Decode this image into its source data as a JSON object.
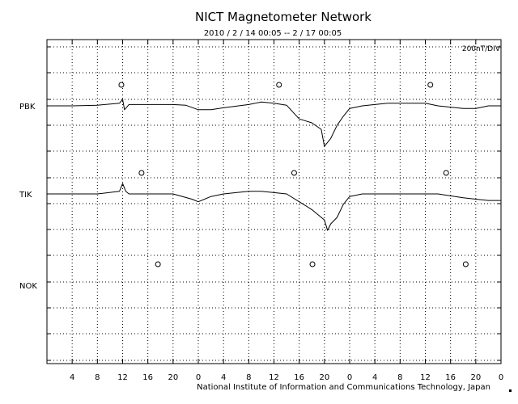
{
  "chart_data": {
    "type": "line",
    "title": "NICT Magnetometer Network",
    "subtitle": "2010 / 2 / 14   00:05 -- 2 / 17   00:05",
    "scale_label": "200nT/DIV",
    "footer": "National Institute of Information and Communications Technology, Japan",
    "x_tick_labels": [
      "4",
      "8",
      "12",
      "16",
      "20",
      "0",
      "4",
      "8",
      "12",
      "16",
      "20",
      "0",
      "4",
      "8",
      "12",
      "16",
      "20",
      "0"
    ],
    "x_range_hours": [
      0,
      72
    ],
    "x_tick_step_hours": 4,
    "grid": "dotted",
    "stations": [
      {
        "name": "PBK",
        "noon_markers_hours": [
          11.8,
          36.8,
          60.8
        ]
      },
      {
        "name": "TIK",
        "noon_markers_hours": [
          15.0,
          39.2,
          63.3
        ]
      },
      {
        "name": "NOK",
        "noon_markers_hours": [
          17.6,
          42.1,
          66.4
        ]
      }
    ],
    "series": [
      {
        "name": "PBK",
        "unit": "nT",
        "x": [
          0,
          4,
          8,
          11.5,
          12,
          12.3,
          13,
          16,
          20,
          22,
          24,
          26,
          28,
          32,
          34,
          36,
          38,
          40,
          42,
          43.5,
          44,
          45,
          46,
          47,
          48,
          50,
          54,
          58,
          60,
          62,
          66,
          68,
          70,
          72
        ],
        "values": [
          0,
          0,
          5,
          20,
          50,
          -30,
          10,
          10,
          10,
          5,
          -30,
          -30,
          -15,
          10,
          30,
          20,
          5,
          -100,
          -130,
          -180,
          -310,
          -250,
          -150,
          -80,
          -20,
          0,
          20,
          20,
          20,
          0,
          -20,
          -20,
          0,
          0
        ]
      },
      {
        "name": "TIK",
        "unit": "nT",
        "x": [
          0,
          4,
          8,
          11.5,
          12,
          12.5,
          13,
          16,
          20,
          23,
          24,
          26,
          28,
          32,
          34,
          36,
          38,
          40,
          42,
          44,
          44.5,
          45,
          46,
          47,
          48,
          50,
          54,
          58,
          60,
          62,
          66,
          68,
          70,
          72
        ],
        "values": [
          0,
          0,
          0,
          20,
          80,
          20,
          0,
          0,
          0,
          -40,
          -60,
          -20,
          0,
          20,
          20,
          10,
          0,
          -60,
          -120,
          -200,
          -280,
          -230,
          -180,
          -80,
          -20,
          0,
          0,
          0,
          0,
          0,
          -30,
          -40,
          -50,
          -50
        ]
      }
    ]
  }
}
